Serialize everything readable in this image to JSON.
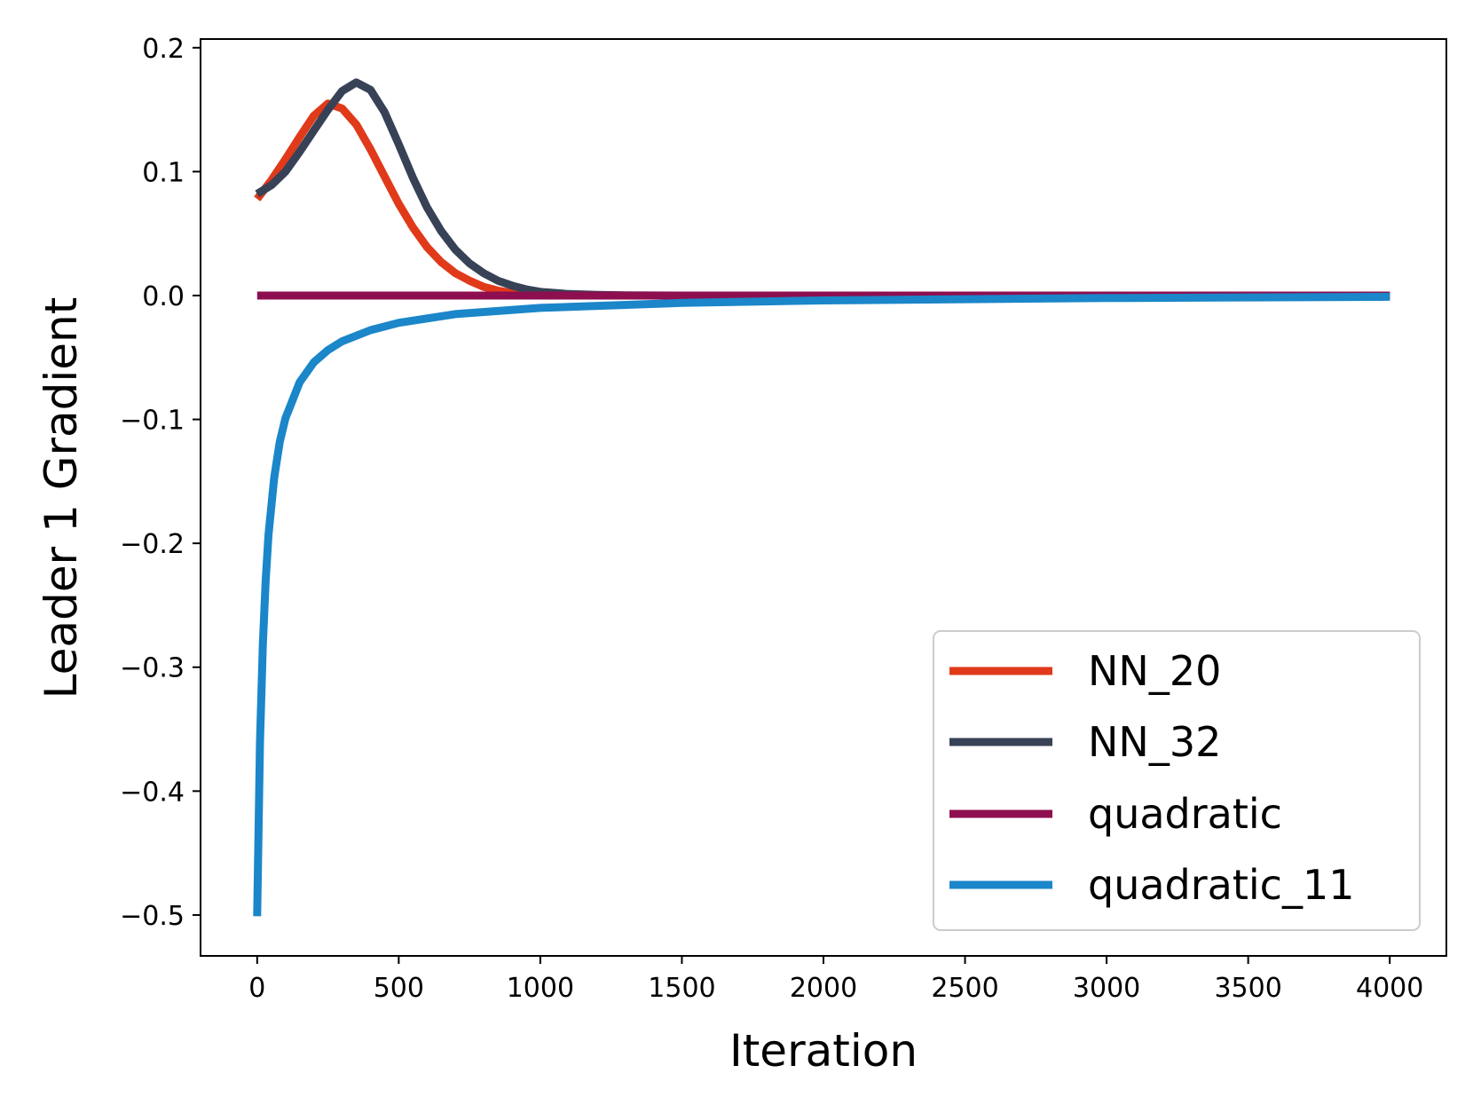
{
  "chart_data": {
    "type": "line",
    "title": "",
    "xlabel": "Iteration",
    "ylabel": "Leader 1 Gradient",
    "xlim": [
      -200,
      4200
    ],
    "ylim": [
      -0.533,
      0.207
    ],
    "xticks": [
      0,
      500,
      1000,
      1500,
      2000,
      2500,
      3000,
      3500,
      4000
    ],
    "xtick_labels": [
      "0",
      "500",
      "1000",
      "1500",
      "2000",
      "2500",
      "3000",
      "3500",
      "4000"
    ],
    "yticks": [
      0.2,
      0.1,
      0.0,
      -0.1,
      -0.2,
      -0.3,
      -0.4,
      -0.5
    ],
    "ytick_labels": [
      "0.2",
      "0.1",
      "0.0",
      "−0.1",
      "−0.2",
      "−0.3",
      "−0.4",
      "−0.5"
    ],
    "legend_position": "lower-right",
    "grid": false,
    "series": [
      {
        "name": "NN_20",
        "color": "#e03a1a",
        "x": [
          0,
          50,
          100,
          150,
          200,
          250,
          300,
          350,
          400,
          450,
          500,
          550,
          600,
          650,
          700,
          750,
          800,
          850,
          900,
          950,
          1000,
          1100,
          1200,
          1300,
          1500,
          2000,
          3000,
          4000
        ],
        "values": [
          0.078,
          0.093,
          0.11,
          0.128,
          0.145,
          0.155,
          0.151,
          0.138,
          0.118,
          0.096,
          0.074,
          0.055,
          0.039,
          0.027,
          0.018,
          0.012,
          0.007,
          0.004,
          0.002,
          0.001,
          0.0005,
          0.0002,
          0.0001,
          0.0,
          0.0,
          0.0,
          0.0,
          0.0
        ]
      },
      {
        "name": "NN_32",
        "color": "#374256",
        "x": [
          0,
          50,
          100,
          150,
          200,
          250,
          300,
          350,
          400,
          450,
          500,
          550,
          600,
          650,
          700,
          750,
          800,
          850,
          900,
          950,
          1000,
          1100,
          1200,
          1300,
          1500,
          2000,
          3000,
          4000
        ],
        "values": [
          0.082,
          0.089,
          0.1,
          0.116,
          0.133,
          0.15,
          0.165,
          0.172,
          0.166,
          0.148,
          0.122,
          0.095,
          0.071,
          0.052,
          0.037,
          0.026,
          0.018,
          0.012,
          0.008,
          0.005,
          0.003,
          0.0012,
          0.0005,
          0.0002,
          0.0,
          0.0,
          0.0,
          0.0
        ]
      },
      {
        "name": "quadratic",
        "color": "#8d0f4f",
        "x": [
          0,
          500,
          1000,
          1500,
          2000,
          2500,
          3000,
          3500,
          4000
        ],
        "values": [
          0.0,
          0.0,
          0.0,
          0.0,
          0.0,
          0.0,
          0.0,
          0.0,
          0.0
        ]
      },
      {
        "name": "quadratic_11",
        "color": "#1b86c9",
        "x": [
          0,
          10,
          20,
          30,
          40,
          60,
          80,
          100,
          150,
          200,
          250,
          300,
          400,
          500,
          700,
          1000,
          1500,
          2000,
          2500,
          3000,
          3500,
          4000
        ],
        "values": [
          -0.501,
          -0.36,
          -0.282,
          -0.23,
          -0.193,
          -0.147,
          -0.118,
          -0.099,
          -0.07,
          -0.054,
          -0.044,
          -0.037,
          -0.028,
          -0.022,
          -0.015,
          -0.01,
          -0.006,
          -0.004,
          -0.003,
          -0.002,
          -0.0015,
          -0.001
        ]
      }
    ]
  }
}
